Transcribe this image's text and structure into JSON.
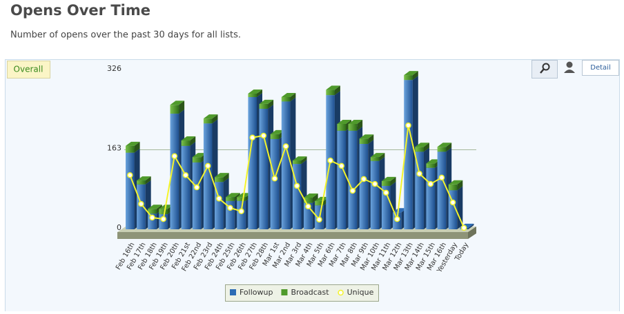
{
  "page": {
    "heading": "Opens Over Time",
    "subtitle": "Number of opens over the past 30 days for all lists.",
    "tab": "Overall",
    "detail_button": "Detail"
  },
  "chart_data": {
    "type": "stacked-bar-3d-line",
    "categories": [
      "Feb 16th",
      "Feb 17th",
      "Feb 18th",
      "Feb 19th",
      "Feb 20th",
      "Feb 21st",
      "Feb 22nd",
      "Feb 23rd",
      "Feb 24th",
      "Feb 25th",
      "Feb 26th",
      "Feb 27th",
      "Feb 28th",
      "Mar 1st",
      "Mar 2nd",
      "Mar 3rd",
      "Mar 4th",
      "Mar 5th",
      "Mar 6th",
      "Mar 7th",
      "Mar 8th",
      "Mar 9th",
      "Mar 10th",
      "Mar 11th",
      "Mar 12th",
      "Mar 13th",
      "Mar 14th",
      "Mar 15th",
      "Mar 16th",
      "Yesterday",
      "Today"
    ],
    "series": [
      {
        "name": "Followup",
        "color": "#2d6cb5",
        "kind": "bar",
        "values": [
          157,
          92,
          32,
          31,
          237,
          171,
          137,
          217,
          97,
          58,
          58,
          271,
          247,
          185,
          262,
          134,
          54,
          49,
          275,
          202,
          202,
          175,
          140,
          89,
          35,
          306,
          159,
          126,
          159,
          80,
          3
        ]
      },
      {
        "name": "Broadcast",
        "color": "#4f9a2b",
        "kind": "bar",
        "values": [
          14,
          8,
          10,
          11,
          18,
          11,
          11,
          10,
          10,
          8,
          8,
          7,
          10,
          10,
          9,
          7,
          11,
          9,
          11,
          14,
          14,
          11,
          8,
          10,
          0,
          10,
          10,
          9,
          10,
          12,
          0
        ]
      },
      {
        "name": "Unique",
        "color": "#f4f42a",
        "kind": "line",
        "values": [
          111,
          52,
          24,
          21,
          150,
          111,
          86,
          130,
          63,
          44,
          37,
          188,
          192,
          104,
          170,
          89,
          47,
          20,
          141,
          130,
          79,
          103,
          93,
          75,
          21,
          213,
          114,
          93,
          106,
          55,
          3
        ]
      }
    ],
    "ylim": [
      0,
      326
    ],
    "yticks": [
      0,
      163,
      326
    ],
    "grid": true,
    "legend": "bottom"
  }
}
